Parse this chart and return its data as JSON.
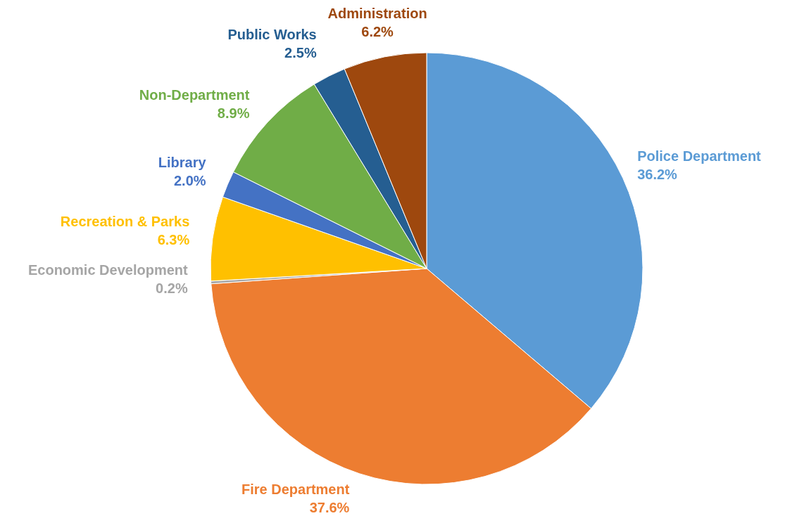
{
  "chart_data": {
    "type": "pie",
    "categories": [
      "Police Department",
      "Fire Department",
      "Economic Development",
      "Recreation & Parks",
      "Library",
      "Non-Department",
      "Public Works",
      "Administration"
    ],
    "values": [
      36.2,
      37.6,
      0.2,
      6.3,
      2.0,
      8.9,
      2.5,
      6.2
    ],
    "value_labels": [
      "36.2%",
      "37.6%",
      "0.2%",
      "6.3%",
      "2.0%",
      "8.9%",
      "2.5%",
      "6.2%"
    ],
    "colors": [
      "#5b9bd5",
      "#ed7d31",
      "#a5a5a5",
      "#ffc000",
      "#4472c4",
      "#70ad47",
      "#255e91",
      "#9e480e"
    ],
    "legend": false
  }
}
